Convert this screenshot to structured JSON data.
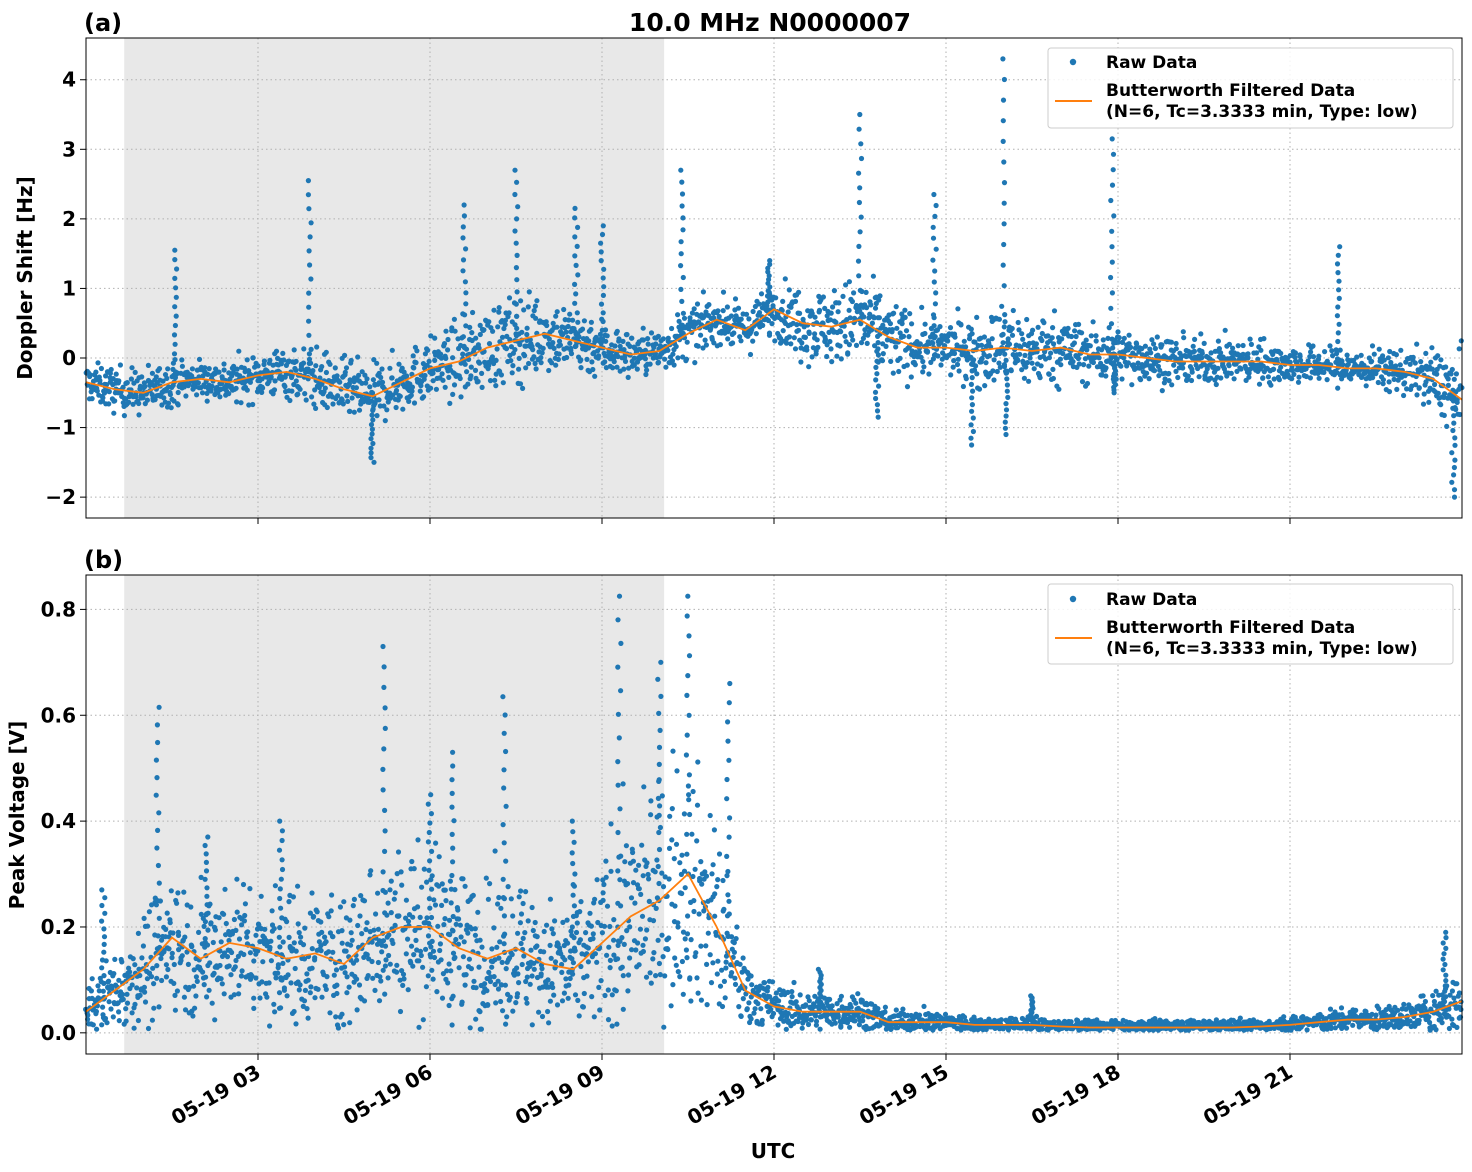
{
  "figure": {
    "title": "10.0 MHz N0000007",
    "xlabel": "UTC",
    "x_tick_labels": [
      "05-19 03",
      "05-19 06",
      "05-19 09",
      "05-19 12",
      "05-19 15",
      "05-19 18",
      "05-19 21"
    ]
  },
  "chart_data": [
    {
      "type": "scatter",
      "panel_label": "(a)",
      "ylabel": "Doppler Shift [Hz]",
      "xlim": [
        "05-19 00:00",
        "05-20 00:00"
      ],
      "ylim": [
        -2.3,
        4.6
      ],
      "y_ticks": [
        -2,
        -1,
        0,
        1,
        2,
        3,
        4
      ],
      "y_tick_labels": [
        "−2",
        "−1",
        "0",
        "1",
        "2",
        "3",
        "4"
      ],
      "grid": true,
      "shaded_interval": [
        "05-19 00:40",
        "05-19 10:05"
      ],
      "legend": {
        "placement": "top-right",
        "raw_label": "Raw Data",
        "filtered_label_line1": "Butterworth Filtered Data",
        "filtered_label_line2": "(N=6, Tc=3.3333 min, Type: low)"
      },
      "x_hours": [
        0,
        0.5,
        1,
        1.5,
        2,
        2.5,
        3,
        3.5,
        4,
        4.5,
        5,
        5.5,
        6,
        6.5,
        7,
        7.5,
        8,
        8.5,
        9,
        9.5,
        10,
        10.5,
        11,
        11.5,
        12,
        12.5,
        13,
        13.5,
        14,
        14.5,
        15,
        15.5,
        16,
        16.5,
        17,
        17.5,
        18,
        18.5,
        19,
        19.5,
        20,
        20.5,
        21,
        21.5,
        22,
        22.5,
        23,
        23.5,
        24
      ],
      "series": [
        {
          "name": "Butterworth Filtered Data",
          "color": "#ff7f0e",
          "values": [
            -0.35,
            -0.45,
            -0.5,
            -0.35,
            -0.3,
            -0.35,
            -0.25,
            -0.2,
            -0.3,
            -0.45,
            -0.55,
            -0.35,
            -0.15,
            -0.05,
            0.15,
            0.25,
            0.35,
            0.25,
            0.15,
            0.05,
            0.1,
            0.35,
            0.55,
            0.4,
            0.7,
            0.5,
            0.45,
            0.55,
            0.3,
            0.15,
            0.15,
            0.1,
            0.15,
            0.1,
            0.15,
            0.05,
            0.05,
            0.0,
            -0.05,
            -0.05,
            -0.05,
            -0.05,
            -0.1,
            -0.1,
            -0.15,
            -0.15,
            -0.2,
            -0.3,
            -0.6
          ]
        },
        {
          "name": "Raw Data",
          "color": "#1f77b4",
          "spread": [
            0.25,
            0.3,
            0.3,
            0.3,
            0.25,
            0.3,
            0.3,
            0.35,
            0.4,
            0.4,
            0.4,
            0.4,
            0.4,
            0.5,
            0.55,
            0.6,
            0.5,
            0.45,
            0.4,
            0.3,
            0.3,
            0.35,
            0.3,
            0.3,
            0.35,
            0.5,
            0.5,
            0.6,
            0.55,
            0.4,
            0.35,
            0.45,
            0.55,
            0.5,
            0.45,
            0.4,
            0.35,
            0.35,
            0.3,
            0.3,
            0.3,
            0.3,
            0.25,
            0.25,
            0.25,
            0.25,
            0.3,
            0.4,
            0.6
          ]
        }
      ],
      "spikes": [
        {
          "x": 1.55,
          "y": 1.55
        },
        {
          "x": 3.9,
          "y": 2.55
        },
        {
          "x": 5.0,
          "y": -1.5
        },
        {
          "x": 6.6,
          "y": 2.2
        },
        {
          "x": 7.5,
          "y": 2.7
        },
        {
          "x": 8.55,
          "y": 2.15
        },
        {
          "x": 9.0,
          "y": 1.9
        },
        {
          "x": 10.4,
          "y": 2.7
        },
        {
          "x": 11.9,
          "y": 1.4
        },
        {
          "x": 13.5,
          "y": 3.5
        },
        {
          "x": 13.8,
          "y": -0.85
        },
        {
          "x": 14.8,
          "y": 2.35
        },
        {
          "x": 15.45,
          "y": -1.25
        },
        {
          "x": 16.0,
          "y": 4.3
        },
        {
          "x": 16.05,
          "y": -1.1
        },
        {
          "x": 17.9,
          "y": 3.15
        },
        {
          "x": 17.95,
          "y": -0.5
        },
        {
          "x": 21.85,
          "y": 1.6
        },
        {
          "x": 23.85,
          "y": -2.0
        }
      ]
    },
    {
      "type": "scatter",
      "panel_label": "(b)",
      "ylabel": "Peak Voltage [V]",
      "xlim": [
        "05-19 00:00",
        "05-20 00:00"
      ],
      "ylim": [
        -0.04,
        0.865
      ],
      "y_ticks": [
        0.0,
        0.2,
        0.4,
        0.6,
        0.8
      ],
      "y_tick_labels": [
        "0.0",
        "0.2",
        "0.4",
        "0.6",
        "0.8"
      ],
      "grid": true,
      "shaded_interval": [
        "05-19 00:40",
        "05-19 10:05"
      ],
      "legend": {
        "placement": "top-right",
        "raw_label": "Raw Data",
        "filtered_label_line1": "Butterworth Filtered Data",
        "filtered_label_line2": "(N=6, Tc=3.3333 min, Type: low)"
      },
      "x_hours": [
        0,
        0.5,
        1,
        1.5,
        2,
        2.5,
        3,
        3.5,
        4,
        4.5,
        5,
        5.5,
        6,
        6.5,
        7,
        7.5,
        8,
        8.5,
        9,
        9.5,
        10,
        10.5,
        11,
        11.5,
        12,
        12.5,
        13,
        13.5,
        14,
        14.5,
        15,
        15.5,
        16,
        16.5,
        17,
        17.5,
        18,
        18.5,
        19,
        19.5,
        20,
        20.5,
        21,
        21.5,
        22,
        22.5,
        23,
        23.5,
        24
      ],
      "series": [
        {
          "name": "Butterworth Filtered Data",
          "color": "#ff7f0e",
          "values": [
            0.04,
            0.08,
            0.12,
            0.18,
            0.14,
            0.17,
            0.16,
            0.14,
            0.15,
            0.13,
            0.18,
            0.2,
            0.2,
            0.16,
            0.14,
            0.16,
            0.13,
            0.12,
            0.17,
            0.22,
            0.25,
            0.3,
            0.2,
            0.08,
            0.05,
            0.04,
            0.04,
            0.04,
            0.02,
            0.02,
            0.02,
            0.015,
            0.015,
            0.015,
            0.012,
            0.01,
            0.01,
            0.01,
            0.01,
            0.01,
            0.01,
            0.012,
            0.015,
            0.02,
            0.025,
            0.025,
            0.03,
            0.04,
            0.06
          ]
        },
        {
          "name": "Raw Data",
          "color": "#1f77b4",
          "spread": [
            0.04,
            0.07,
            0.1,
            0.12,
            0.11,
            0.12,
            0.12,
            0.12,
            0.12,
            0.12,
            0.13,
            0.14,
            0.14,
            0.13,
            0.13,
            0.13,
            0.12,
            0.12,
            0.14,
            0.18,
            0.2,
            0.22,
            0.18,
            0.06,
            0.04,
            0.035,
            0.035,
            0.035,
            0.025,
            0.02,
            0.02,
            0.015,
            0.015,
            0.015,
            0.012,
            0.012,
            0.012,
            0.012,
            0.012,
            0.012,
            0.012,
            0.012,
            0.015,
            0.018,
            0.02,
            0.02,
            0.025,
            0.035,
            0.06
          ]
        }
      ],
      "spikes": [
        {
          "x": 0.3,
          "y": 0.27
        },
        {
          "x": 1.25,
          "y": 0.615
        },
        {
          "x": 2.1,
          "y": 0.37
        },
        {
          "x": 3.4,
          "y": 0.4
        },
        {
          "x": 5.2,
          "y": 0.73
        },
        {
          "x": 6.0,
          "y": 0.45
        },
        {
          "x": 6.4,
          "y": 0.53
        },
        {
          "x": 7.3,
          "y": 0.635
        },
        {
          "x": 8.5,
          "y": 0.4
        },
        {
          "x": 9.3,
          "y": 0.825
        },
        {
          "x": 10.0,
          "y": 0.7
        },
        {
          "x": 10.5,
          "y": 0.825
        },
        {
          "x": 11.2,
          "y": 0.66
        },
        {
          "x": 12.8,
          "y": 0.12
        },
        {
          "x": 16.5,
          "y": 0.07
        },
        {
          "x": 23.7,
          "y": 0.19
        }
      ]
    }
  ]
}
